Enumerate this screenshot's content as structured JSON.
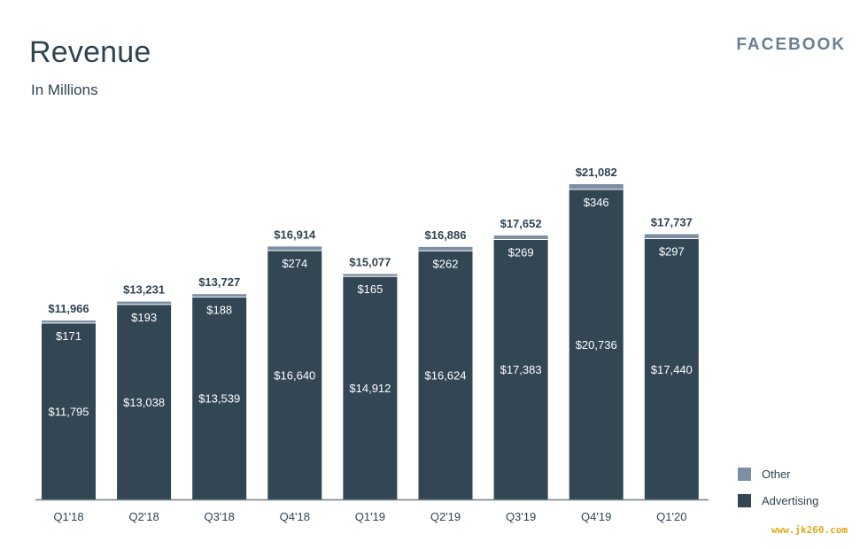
{
  "header": {
    "title": "Revenue",
    "subtitle": "In Millions",
    "brand": "FACEBOOK"
  },
  "watermark": "www.jk260.com",
  "colors": {
    "advertising": "#324654",
    "other": "#7a8fa3",
    "axis": "#6f7f8c"
  },
  "chart_data": {
    "type": "bar",
    "stacked": true,
    "categories": [
      "Q1'18",
      "Q2'18",
      "Q3'18",
      "Q4'18",
      "Q1'19",
      "Q2'19",
      "Q3'19",
      "Q4'19",
      "Q1'20"
    ],
    "series": [
      {
        "name": "Advertising",
        "values": [
          11795,
          13038,
          13539,
          16640,
          14912,
          16624,
          17383,
          20736,
          17440
        ],
        "labels": [
          "$11,795",
          "$13,038",
          "$13,539",
          "$16,640",
          "$14,912",
          "$16,624",
          "$17,383",
          "$20,736",
          "$17,440"
        ]
      },
      {
        "name": "Other",
        "values": [
          171,
          193,
          188,
          274,
          165,
          262,
          269,
          346,
          297
        ],
        "labels": [
          "$171",
          "$193",
          "$188",
          "$274",
          "$165",
          "$262",
          "$269",
          "$346",
          "$297"
        ]
      }
    ],
    "totals": [
      11966,
      13231,
      13727,
      16914,
      15077,
      16886,
      17652,
      21082,
      17737
    ],
    "total_labels": [
      "$11,966",
      "$13,231",
      "$13,727",
      "$16,914",
      "$15,077",
      "$16,886",
      "$17,652",
      "$21,082",
      "$17,737"
    ],
    "title": "Revenue",
    "subtitle": "In Millions",
    "ylim": [
      0,
      21082
    ],
    "grid": false,
    "legend": "bottom-right",
    "legend_entries": [
      "Other",
      "Advertising"
    ]
  }
}
